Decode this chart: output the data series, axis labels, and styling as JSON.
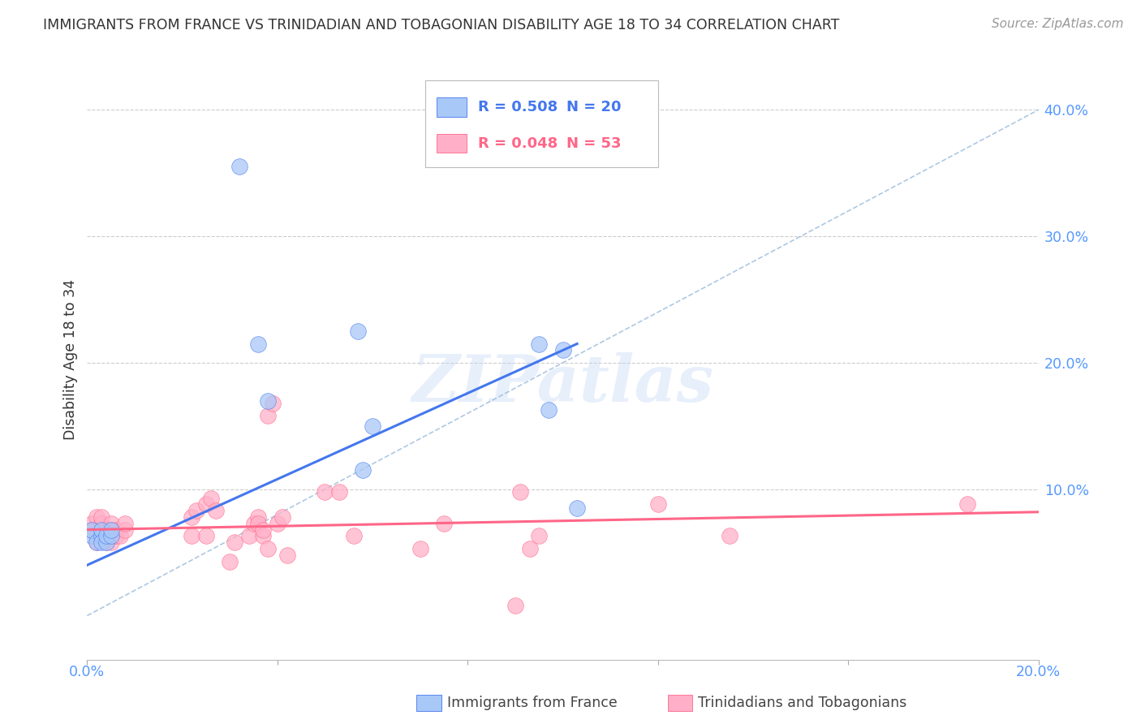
{
  "title": "IMMIGRANTS FROM FRANCE VS TRINIDADIAN AND TOBAGONIAN DISABILITY AGE 18 TO 34 CORRELATION CHART",
  "source": "Source: ZipAtlas.com",
  "ylabel": "Disability Age 18 to 34",
  "ytick_labels": [
    "10.0%",
    "20.0%",
    "30.0%",
    "40.0%"
  ],
  "ytick_values": [
    0.1,
    0.2,
    0.3,
    0.4
  ],
  "xlim": [
    0.0,
    0.2
  ],
  "ylim": [
    -0.035,
    0.44
  ],
  "legend_france_R": "R = 0.508",
  "legend_france_N": "N = 20",
  "legend_tnt_R": "R = 0.048",
  "legend_tnt_N": "N = 53",
  "legend_label_france": "Immigrants from France",
  "legend_label_tnt": "Trinidadians and Tobagonians",
  "color_france": "#a8c8f8",
  "color_tnt": "#ffb0c8",
  "color_france_line": "#4477ee",
  "color_tnt_line": "#ff6688",
  "color_diag": "#99bbdd",
  "watermark": "ZIPatlas",
  "france_x": [
    0.001,
    0.001,
    0.002,
    0.003,
    0.003,
    0.003,
    0.004,
    0.004,
    0.005,
    0.005,
    0.032,
    0.036,
    0.038,
    0.057,
    0.058,
    0.06,
    0.095,
    0.097,
    0.1,
    0.103
  ],
  "france_y": [
    0.063,
    0.068,
    0.058,
    0.063,
    0.068,
    0.058,
    0.058,
    0.063,
    0.063,
    0.068,
    0.355,
    0.215,
    0.17,
    0.225,
    0.115,
    0.15,
    0.215,
    0.163,
    0.21,
    0.085
  ],
  "tnt_x": [
    0.001,
    0.001,
    0.002,
    0.002,
    0.002,
    0.003,
    0.003,
    0.003,
    0.004,
    0.004,
    0.004,
    0.005,
    0.005,
    0.005,
    0.005,
    0.006,
    0.006,
    0.007,
    0.008,
    0.008,
    0.022,
    0.022,
    0.023,
    0.025,
    0.025,
    0.026,
    0.027,
    0.03,
    0.031,
    0.034,
    0.035,
    0.036,
    0.036,
    0.037,
    0.037,
    0.038,
    0.038,
    0.039,
    0.04,
    0.041,
    0.042,
    0.05,
    0.053,
    0.056,
    0.07,
    0.075,
    0.09,
    0.091,
    0.093,
    0.095,
    0.12,
    0.135,
    0.185
  ],
  "tnt_y": [
    0.068,
    0.073,
    0.058,
    0.063,
    0.078,
    0.068,
    0.073,
    0.078,
    0.058,
    0.063,
    0.068,
    0.058,
    0.063,
    0.068,
    0.073,
    0.063,
    0.068,
    0.063,
    0.068,
    0.073,
    0.063,
    0.078,
    0.083,
    0.063,
    0.088,
    0.093,
    0.083,
    0.043,
    0.058,
    0.063,
    0.073,
    0.078,
    0.073,
    0.063,
    0.068,
    0.053,
    0.158,
    0.168,
    0.073,
    0.078,
    0.048,
    0.098,
    0.098,
    0.063,
    0.053,
    0.073,
    0.008,
    0.098,
    0.053,
    0.063,
    0.088,
    0.063,
    0.088
  ],
  "france_trend_x": [
    0.0,
    0.103
  ],
  "france_trend_y": [
    0.04,
    0.215
  ],
  "tnt_trend_x": [
    0.0,
    0.2
  ],
  "tnt_trend_y": [
    0.068,
    0.082
  ]
}
